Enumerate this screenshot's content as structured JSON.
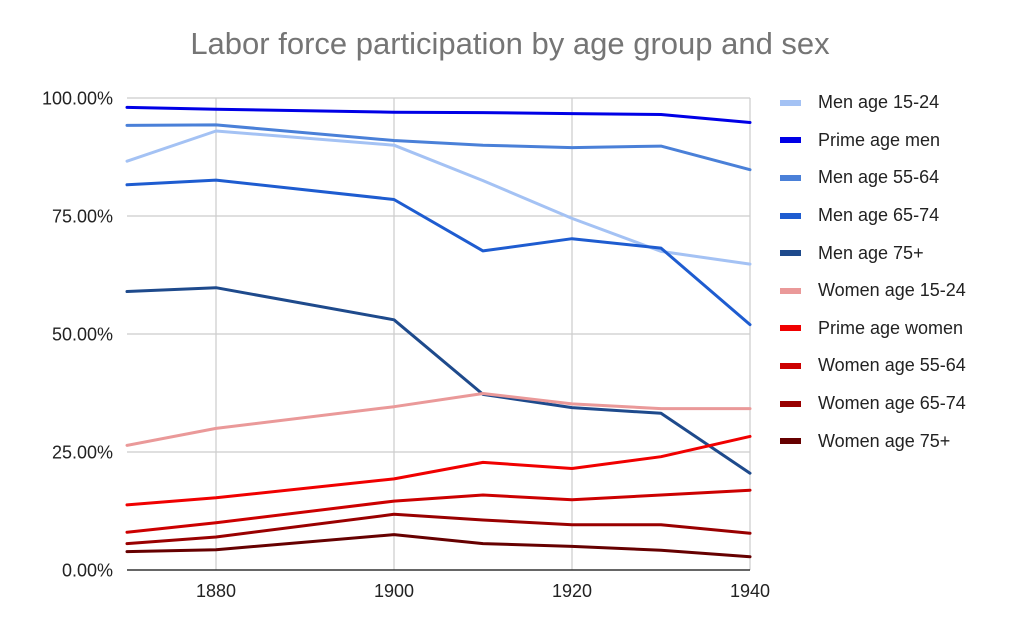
{
  "chart_data": {
    "type": "line",
    "title": "Labor force participation by age group and sex",
    "xlabel": "",
    "ylabel": "",
    "x": [
      1870,
      1880,
      1900,
      1910,
      1920,
      1930,
      1940
    ],
    "xticks": [
      "1880",
      "1900",
      "1920",
      "1940"
    ],
    "xtick_values": [
      1880,
      1900,
      1920,
      1940
    ],
    "xlim": [
      1870,
      1940
    ],
    "ylim": [
      0,
      100
    ],
    "yticks": [
      "0.00%",
      "25.00%",
      "50.00%",
      "75.00%",
      "100.00%"
    ],
    "ytick_values": [
      0,
      25,
      50,
      75,
      100
    ],
    "grid": true,
    "legend_position": "right",
    "series": [
      {
        "name": "Men age 15-24",
        "color": "#a4c2f4",
        "values": [
          86.6,
          93.0,
          90.0,
          82.5,
          74.5,
          67.5,
          64.8
        ]
      },
      {
        "name": "Prime age men",
        "color": "#0000e6",
        "values": [
          98.0,
          97.6,
          97.0,
          96.9,
          96.7,
          96.5,
          94.8
        ]
      },
      {
        "name": "Men age 55-64",
        "color": "#4a80d8",
        "values": [
          94.2,
          94.3,
          91.0,
          90.0,
          89.5,
          89.8,
          84.8
        ]
      },
      {
        "name": "Men age 65-74",
        "color": "#1e5cd0",
        "values": [
          81.6,
          82.6,
          78.5,
          67.6,
          70.2,
          68.2,
          52.0
        ]
      },
      {
        "name": "Men age 75+",
        "color": "#1e4a8c",
        "values": [
          59.0,
          59.8,
          53.0,
          37.2,
          34.4,
          33.2,
          20.5
        ]
      },
      {
        "name": "Women age 15-24",
        "color": "#ea9999",
        "values": [
          26.4,
          30.0,
          34.6,
          37.4,
          35.2,
          34.2,
          34.2
        ]
      },
      {
        "name": "Prime age women",
        "color": "#f00000",
        "values": [
          13.8,
          15.3,
          19.3,
          22.8,
          21.5,
          24.0,
          28.3
        ]
      },
      {
        "name": "Women age 55-64",
        "color": "#cc0000",
        "values": [
          8.0,
          10.0,
          14.6,
          15.9,
          14.9,
          15.9,
          16.9
        ]
      },
      {
        "name": "Women age 65-74",
        "color": "#990000",
        "values": [
          5.6,
          7.0,
          11.8,
          10.6,
          9.6,
          9.6,
          7.8
        ]
      },
      {
        "name": "Women age 75+",
        "color": "#660000",
        "values": [
          3.9,
          4.3,
          7.5,
          5.6,
          5.0,
          4.2,
          2.8
        ]
      }
    ]
  }
}
